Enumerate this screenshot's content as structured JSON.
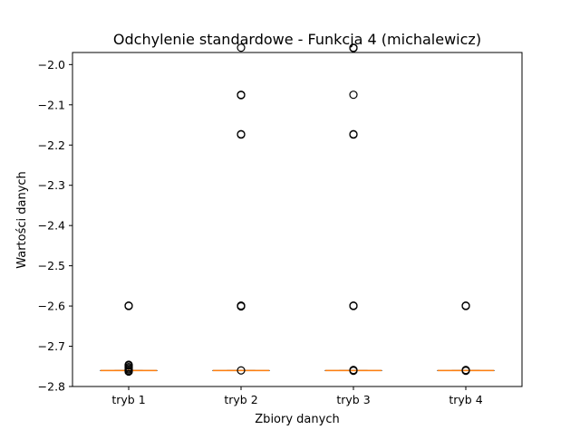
{
  "chart_data": {
    "type": "box",
    "title": "Odchylenie standardowe - Funkcja 4 (michalewicz)",
    "xlabel": "Zbiory danych",
    "ylabel": "Wartości danych",
    "ylim": [
      -2.8,
      -1.97
    ],
    "yticks": [
      -2.0,
      -2.1,
      -2.2,
      -2.3,
      -2.4,
      -2.5,
      -2.6,
      -2.7,
      -2.8
    ],
    "ytick_labels": [
      "−2.0",
      "−2.1",
      "−2.2",
      "−2.3",
      "−2.4",
      "−2.5",
      "−2.6",
      "−2.7",
      "−2.8"
    ],
    "categories": [
      "tryb 1",
      "tryb 2",
      "tryb 3",
      "tryb 4"
    ],
    "boxes": [
      {
        "name": "tryb 1",
        "q1": -2.7603,
        "median": -2.7603,
        "q3": -2.7603,
        "whisker_low": -2.7603,
        "whisker_high": -2.7603,
        "outliers": [
          -2.6,
          -2.599,
          -2.746,
          -2.748,
          -2.752,
          -2.755,
          -2.758,
          -2.761,
          -2.763
        ]
      },
      {
        "name": "tryb 2",
        "q1": -2.7603,
        "median": -2.7603,
        "q3": -2.7603,
        "whisker_low": -2.7603,
        "whisker_high": -2.7603,
        "outliers": [
          -1.958,
          -2.075,
          -2.076,
          -2.173,
          -2.174,
          -2.599,
          -2.6,
          -2.601,
          -2.76
        ]
      },
      {
        "name": "tryb 3",
        "q1": -2.7603,
        "median": -2.7603,
        "q3": -2.7603,
        "whisker_low": -2.7603,
        "whisker_high": -2.7603,
        "outliers": [
          -1.958,
          -1.959,
          -2.075,
          -2.173,
          -2.174,
          -2.599,
          -2.6,
          -2.759,
          -2.761
        ]
      },
      {
        "name": "tryb 4",
        "q1": -2.7603,
        "median": -2.7603,
        "q3": -2.7603,
        "whisker_low": -2.7603,
        "whisker_high": -2.7603,
        "outliers": [
          -2.599,
          -2.6,
          -2.759,
          -2.761
        ]
      }
    ],
    "colors": {
      "median": "#ff7f0e",
      "box": "#000000",
      "outlier": "#000000"
    },
    "grid": false,
    "legend": "none"
  }
}
